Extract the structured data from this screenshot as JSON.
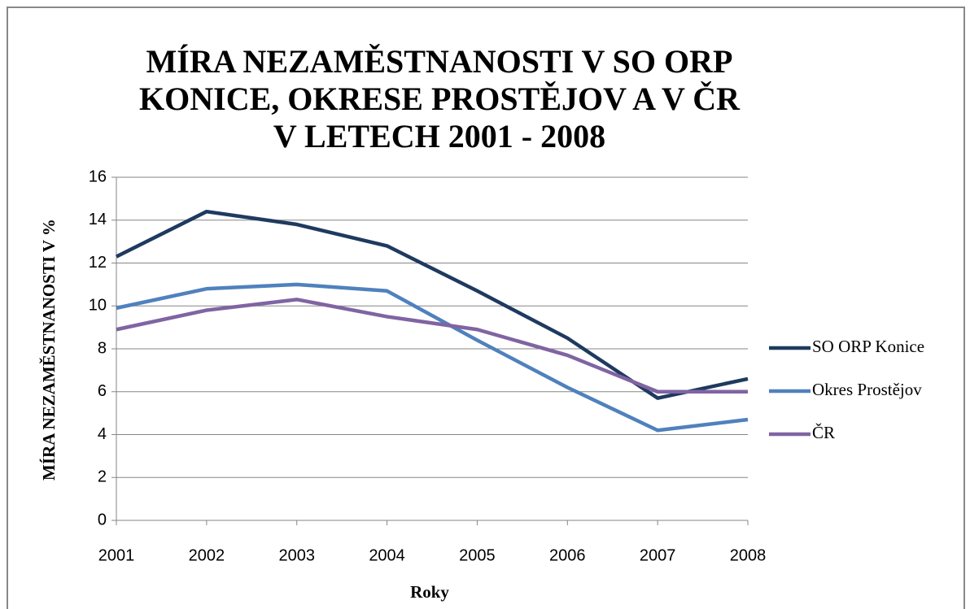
{
  "chart_data": {
    "type": "line",
    "title": [
      "MÍRA NEZAMĚSTNANOSTI V SO ORP",
      "KONICE, OKRESE PROSTĚJOV A V ČR",
      "V LETECH 2001 - 2008"
    ],
    "xlabel": "Roky",
    "ylabel": "MÍRA NEZAMĚSTNANOSTI V %",
    "x": [
      2001,
      2002,
      2003,
      2004,
      2005,
      2006,
      2007,
      2008
    ],
    "xlim": [
      2001,
      2008
    ],
    "xticks": [
      2001,
      2002,
      2003,
      2004,
      2005,
      2006,
      2007,
      2008
    ],
    "ylim": [
      0,
      16
    ],
    "yticks": [
      0,
      2,
      4,
      6,
      8,
      10,
      12,
      14,
      16
    ],
    "grid": true,
    "legend": "right",
    "series": [
      {
        "name": "SO ORP Konice",
        "color": "#1f3a5f",
        "values": [
          12.3,
          14.4,
          13.8,
          12.8,
          10.7,
          8.5,
          5.7,
          6.6
        ]
      },
      {
        "name": "Okres Prostějov",
        "color": "#4f81bd",
        "values": [
          9.9,
          10.8,
          11.0,
          10.7,
          8.4,
          6.2,
          4.2,
          4.7
        ]
      },
      {
        "name": "ČR",
        "color": "#8064a2",
        "values": [
          8.9,
          9.8,
          10.3,
          9.5,
          8.9,
          7.7,
          6.0,
          6.0
        ]
      }
    ]
  }
}
